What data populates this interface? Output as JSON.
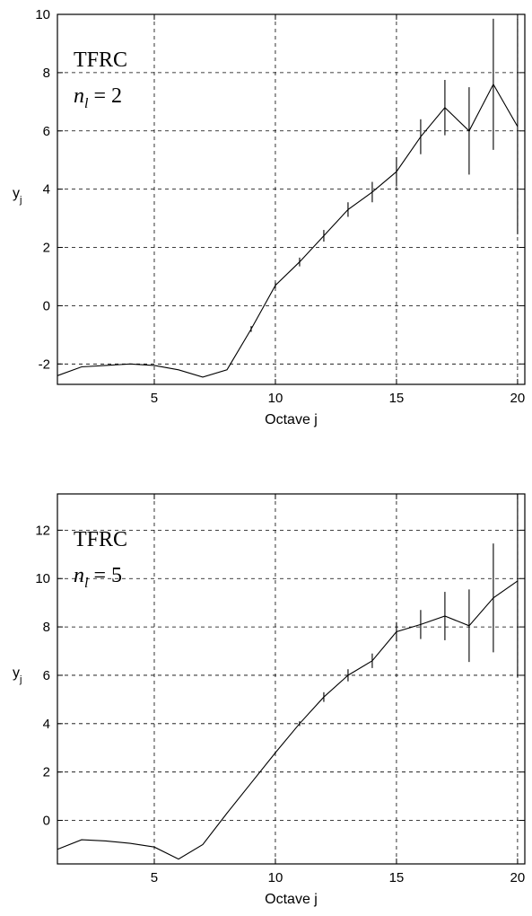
{
  "chart_data": [
    {
      "type": "line",
      "title": "",
      "xlabel": "Octave j",
      "ylabel_main": "y",
      "ylabel_sub": "j",
      "annotation_line1": "TFRC",
      "annotation_n": "n",
      "annotation_sub": "l",
      "annotation_eq": " = 2",
      "xlim": [
        1,
        20.3
      ],
      "ylim": [
        -2.7,
        10
      ],
      "xticks": [
        5,
        10,
        15,
        20
      ],
      "yticks": [
        -2,
        0,
        2,
        4,
        6,
        8,
        10
      ],
      "grid": true,
      "x": [
        1,
        2,
        3,
        4,
        5,
        6,
        7,
        8,
        9,
        10,
        11,
        12,
        13,
        14,
        15,
        16,
        17,
        18,
        19,
        20
      ],
      "y": [
        -2.4,
        -2.1,
        -2.05,
        -2.0,
        -2.05,
        -2.2,
        -2.45,
        -2.2,
        -0.8,
        0.7,
        1.5,
        2.4,
        3.3,
        3.9,
        4.6,
        5.8,
        6.8,
        6.0,
        7.6,
        6.15
      ],
      "err": [
        0,
        0,
        0,
        0,
        0,
        0,
        0,
        0,
        0.1,
        0.1,
        0.15,
        0.2,
        0.25,
        0.35,
        0.5,
        0.6,
        0.95,
        1.5,
        2.25,
        3.7
      ]
    },
    {
      "type": "line",
      "title": "",
      "xlabel": "Octave j",
      "ylabel_main": "y",
      "ylabel_sub": "j",
      "annotation_line1": "TFRC",
      "annotation_n": "n",
      "annotation_sub": "l",
      "annotation_eq": " = 5",
      "xlim": [
        1,
        20.3
      ],
      "ylim": [
        -1.8,
        13.5
      ],
      "xticks": [
        5,
        10,
        15,
        20
      ],
      "yticks": [
        0,
        2,
        4,
        6,
        8,
        10,
        12
      ],
      "grid": true,
      "x": [
        1,
        2,
        3,
        4,
        5,
        6,
        7,
        8,
        9,
        10,
        11,
        12,
        13,
        14,
        15,
        16,
        17,
        18,
        19,
        20
      ],
      "y": [
        -1.2,
        -0.8,
        -0.85,
        -0.95,
        -1.1,
        -1.6,
        -1.0,
        0.3,
        1.55,
        2.8,
        4.0,
        5.1,
        6.0,
        6.6,
        7.8,
        8.1,
        8.45,
        8.05,
        9.2,
        9.9
      ],
      "err": [
        0,
        0,
        0,
        0,
        0,
        0,
        0,
        0,
        0,
        0.05,
        0.1,
        0.2,
        0.25,
        0.3,
        0.4,
        0.6,
        1.0,
        1.5,
        2.25,
        4.0
      ]
    }
  ]
}
